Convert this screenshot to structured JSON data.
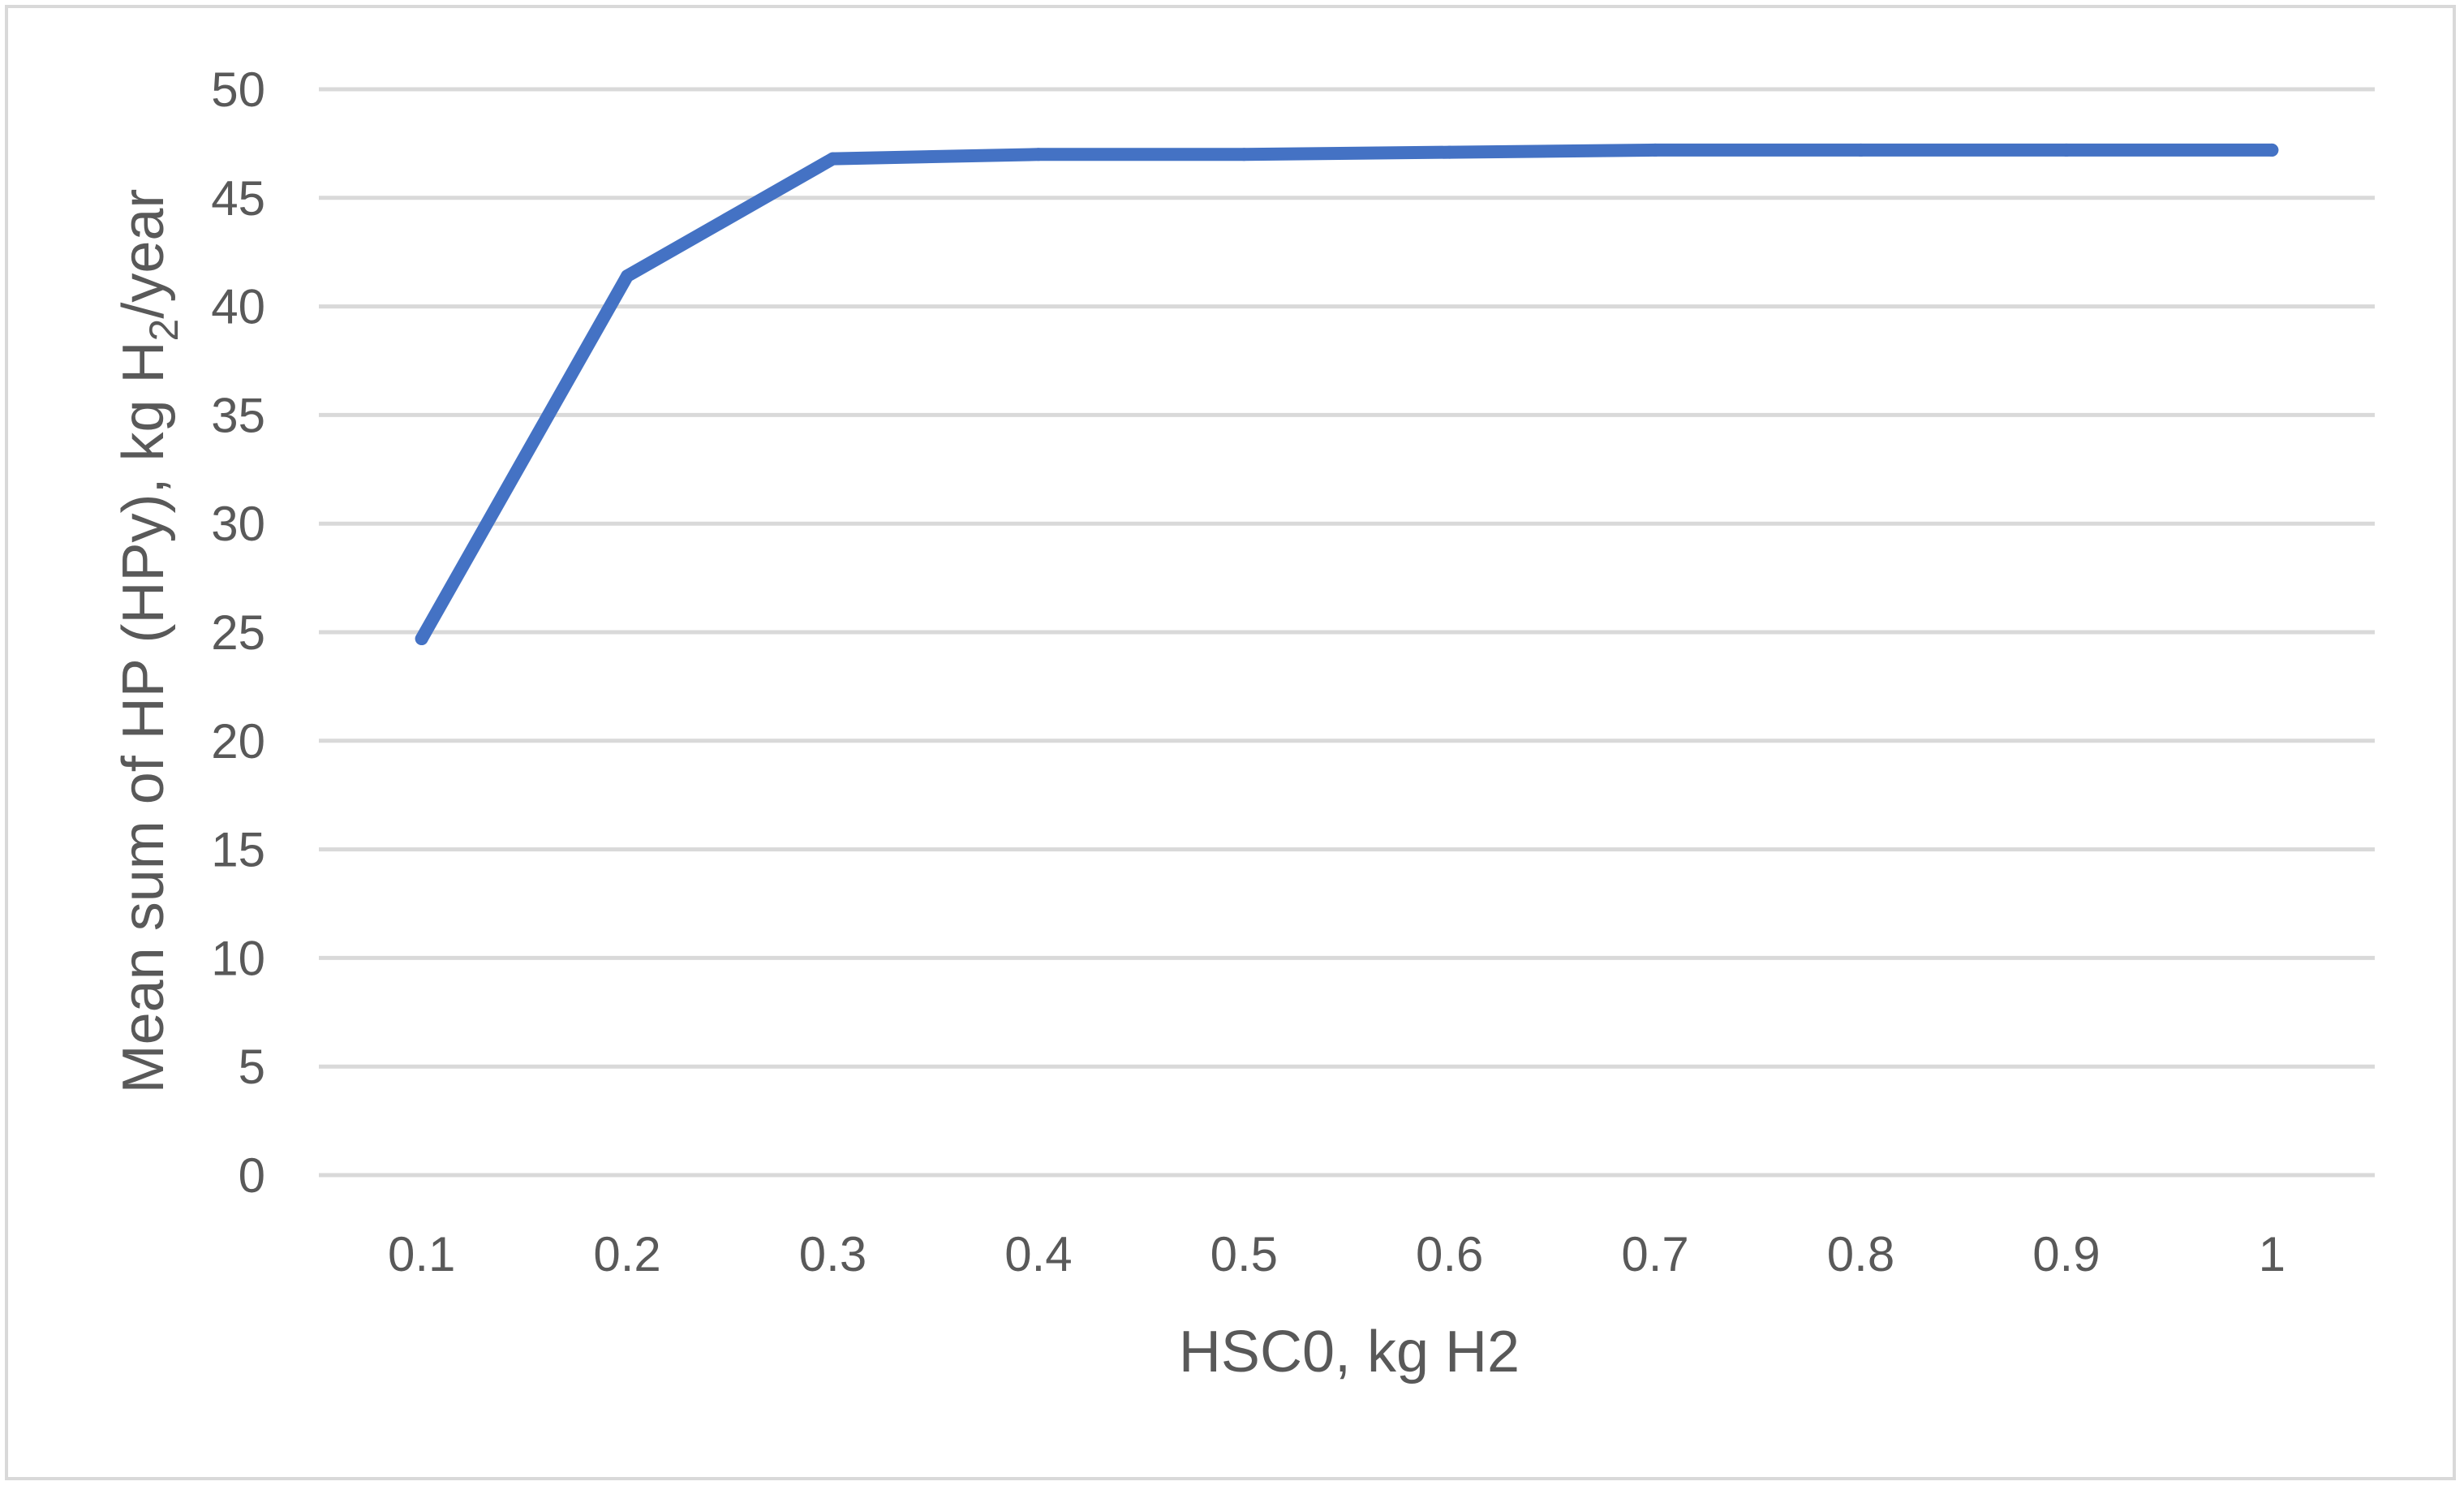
{
  "chart_data": {
    "type": "line",
    "title": "",
    "xlabel": "HSC0, kg H2",
    "ylabel_parts": {
      "before": "Mean sum of HP (HPy), kg H",
      "subscript": "2",
      "after": "/year"
    },
    "ylabel": "Mean sum of HP (HPy), kg H2/year",
    "categories": [
      "0.1",
      "0.2",
      "0.3",
      "0.4",
      "0.5",
      "0.6",
      "0.7",
      "0.8",
      "0.9",
      "1"
    ],
    "series": [
      {
        "values": [
          24.7,
          41.4,
          46.8,
          47.0,
          47.0,
          47.1,
          47.2,
          47.2,
          47.2,
          47.2
        ],
        "color": "#4472c4"
      }
    ],
    "ylim": [
      0,
      50
    ],
    "yticks": [
      0,
      5,
      10,
      15,
      20,
      25,
      30,
      35,
      40,
      45,
      50
    ],
    "grid": true,
    "legend": "none"
  }
}
